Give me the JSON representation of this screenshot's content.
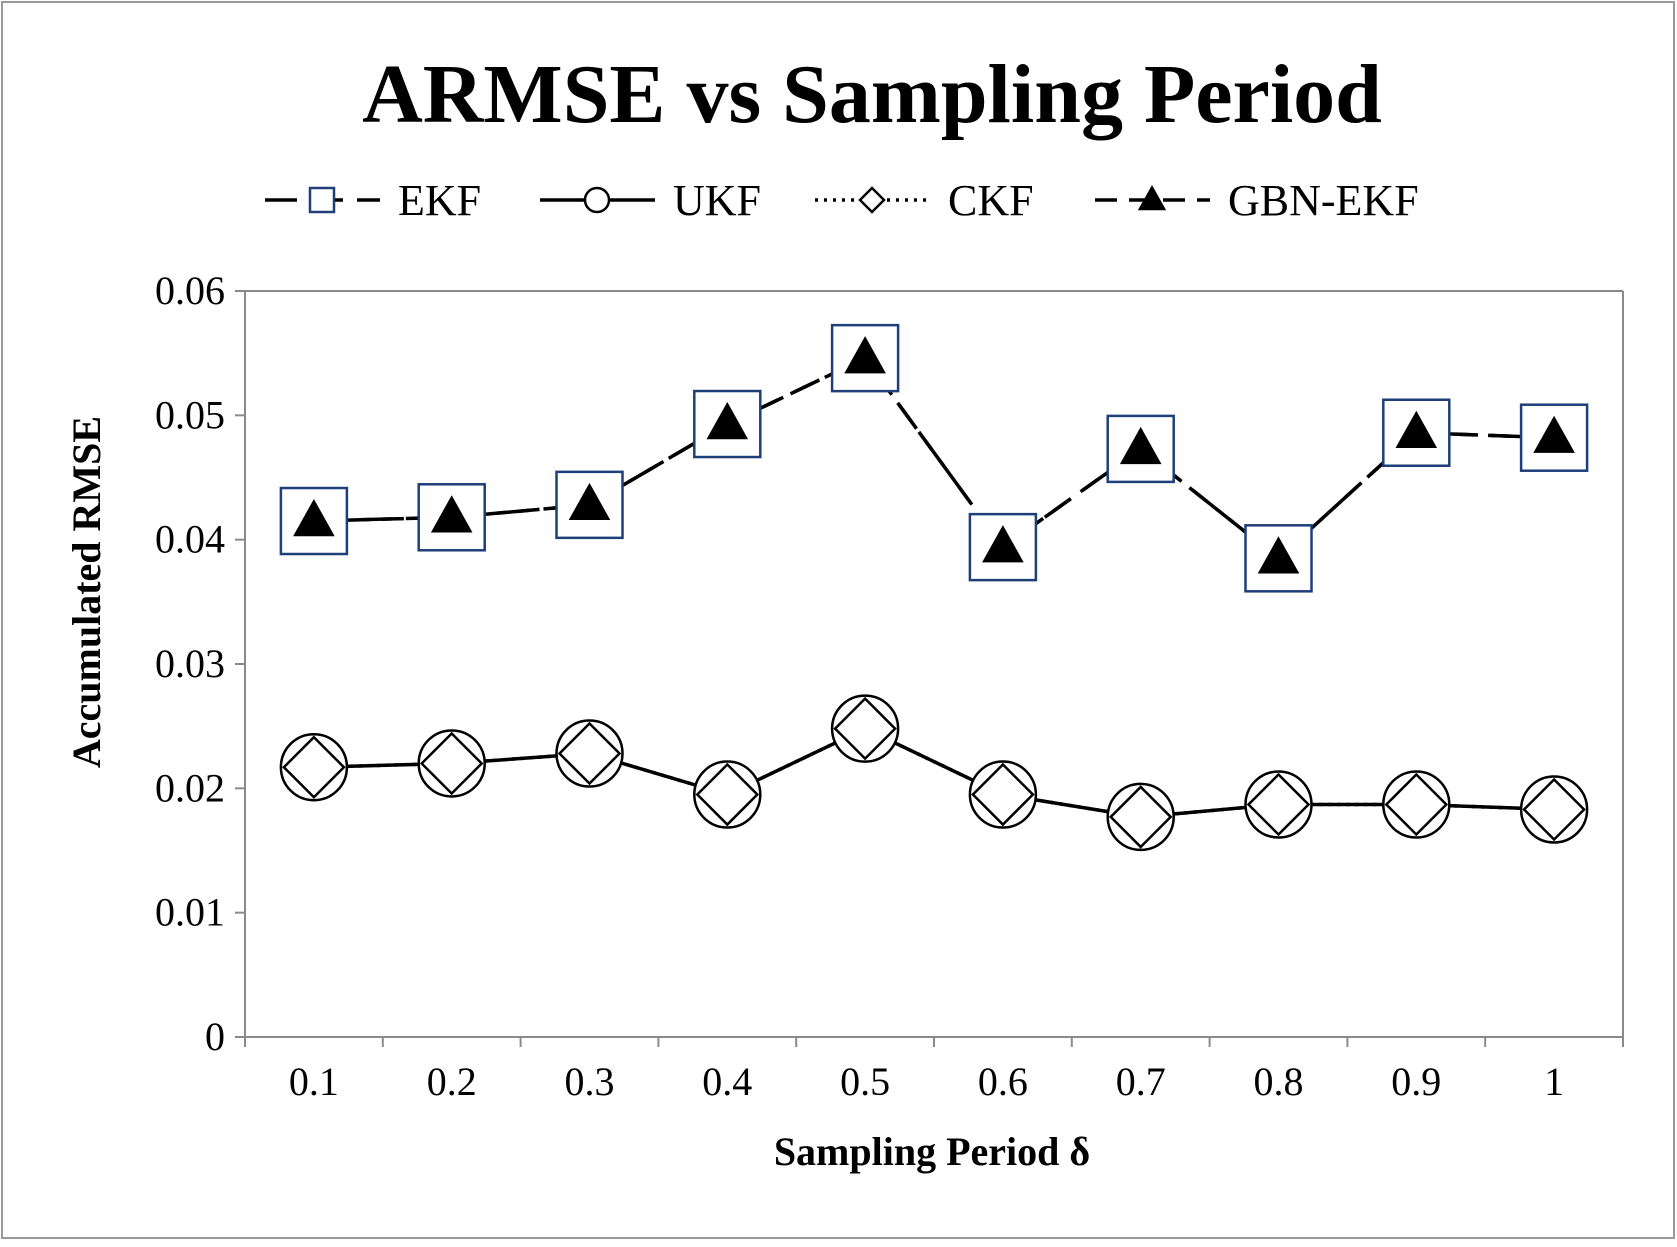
{
  "chart_data": {
    "type": "line",
    "title": "ARMSE vs Sampling Period",
    "xlabel": "Sampling Period δ",
    "ylabel": "Accumulated RMSE",
    "categories": [
      "0.1",
      "0.2",
      "0.3",
      "0.4",
      "0.5",
      "0.6",
      "0.7",
      "0.8",
      "0.9",
      "1"
    ],
    "yticks": [
      "0",
      "0.01",
      "0.02",
      "0.03",
      "0.04",
      "0.05",
      "0.06"
    ],
    "ylim": [
      0,
      0.06
    ],
    "grid": false,
    "legend_position": "top",
    "series": [
      {
        "name": "EKF",
        "marker": "open-square",
        "line": "long-dash",
        "marker_color": "#1f3f7a",
        "values": [
          0.0415,
          0.0418,
          0.0428,
          0.0493,
          0.0546,
          0.0394,
          0.0473,
          0.0385,
          0.0486,
          0.0482
        ]
      },
      {
        "name": "UKF",
        "marker": "open-circle",
        "line": "solid",
        "marker_color": "#000000",
        "values": [
          0.0217,
          0.022,
          0.0228,
          0.0195,
          0.0248,
          0.0195,
          0.0177,
          0.0187,
          0.0187,
          0.0183
        ]
      },
      {
        "name": "CKF",
        "marker": "open-diamond",
        "line": "dotted",
        "marker_color": "#000000",
        "values": [
          0.0217,
          0.022,
          0.0228,
          0.0195,
          0.0248,
          0.0195,
          0.0177,
          0.0187,
          0.0187,
          0.0183
        ]
      },
      {
        "name": "GBN-EKF",
        "marker": "filled-triangle",
        "line": "dash",
        "marker_color": "#000000",
        "values": [
          0.0415,
          0.0418,
          0.0428,
          0.0493,
          0.0546,
          0.0394,
          0.0473,
          0.0385,
          0.0486,
          0.0482
        ]
      }
    ]
  }
}
